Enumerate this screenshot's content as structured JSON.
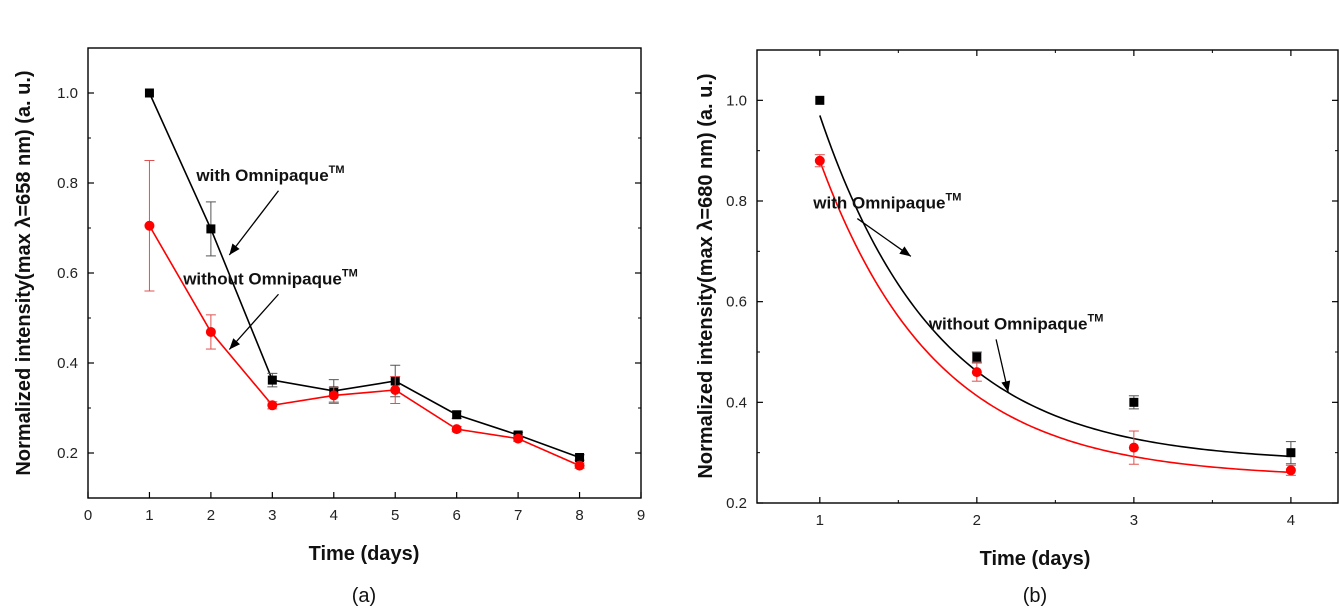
{
  "chart_data": [
    {
      "panel_label": "(a)",
      "type": "line",
      "xlabel": "Time (days)",
      "ylabel": "Normalized intensity(max λ=658 nm) (a. u.)",
      "xlim": [
        0,
        9
      ],
      "ylim": [
        0.1,
        1.1
      ],
      "xticks": [
        0,
        1,
        2,
        3,
        4,
        5,
        6,
        7,
        8,
        9
      ],
      "yticks": [
        0.2,
        0.4,
        0.6,
        0.8,
        1.0
      ],
      "ytick_labels": [
        "0.2",
        "0.4",
        "0.6",
        "0.8",
        "1.0"
      ],
      "grid": false,
      "series": [
        {
          "name": "with Omnipaque™",
          "color": "#000000",
          "marker": "square",
          "x": [
            1,
            2,
            3,
            4,
            5,
            6,
            7,
            8
          ],
          "y": [
            1.0,
            0.698,
            0.362,
            0.338,
            0.36,
            0.285,
            0.24,
            0.19
          ],
          "err": [
            0,
            0.06,
            0.015,
            0.025,
            0.035,
            0.008,
            0.006,
            0.006
          ]
        },
        {
          "name": "without Omnipaque™",
          "color": "#ff0000",
          "marker": "circle",
          "x": [
            1,
            2,
            3,
            4,
            5,
            6,
            7,
            8
          ],
          "y": [
            0.705,
            0.469,
            0.306,
            0.328,
            0.34,
            0.253,
            0.232,
            0.172
          ],
          "err": [
            0.145,
            0.038,
            0.008,
            0.018,
            0.03,
            0.006,
            0.006,
            0.006
          ]
        }
      ],
      "annotations": [
        {
          "text": "with Omnipaque",
          "sup": "TM",
          "x": 2.97,
          "y": 0.805,
          "arrow_to": [
            2.3,
            0.64
          ]
        },
        {
          "text": "without Omnipaque",
          "sup": "TM",
          "x": 2.97,
          "y": 0.575,
          "arrow_to": [
            2.3,
            0.43
          ]
        }
      ]
    },
    {
      "panel_label": "(b)",
      "type": "scatter",
      "xlabel": "Time (days)",
      "ylabel": "Normalized intensity(max λ=680 nm) (a. u.)",
      "xlim": [
        0.6,
        4.3
      ],
      "ylim": [
        0.2,
        1.1
      ],
      "xticks": [
        1,
        2,
        3,
        4
      ],
      "yticks": [
        0.2,
        0.4,
        0.6,
        0.8,
        1.0
      ],
      "ytick_labels": [
        "0.2",
        "0.4",
        "0.6",
        "0.8",
        "1.0"
      ],
      "grid": false,
      "series": [
        {
          "name": "with Omnipaque™",
          "color": "#000000",
          "marker": "square",
          "x": [
            1,
            2,
            3,
            4
          ],
          "y": [
            1.0,
            0.49,
            0.4,
            0.3
          ],
          "err": [
            0,
            0.01,
            0.013,
            0.022
          ],
          "fit": {
            "model": "exponential decay",
            "y0": 0.28,
            "A": 0.69,
            "t0": 0.75,
            "x0": 1
          }
        },
        {
          "name": "without Omnipaque™",
          "color": "#ff0000",
          "marker": "circle",
          "x": [
            1,
            2,
            3,
            4
          ],
          "y": [
            0.88,
            0.46,
            0.31,
            0.265
          ],
          "err": [
            0.012,
            0.018,
            0.033,
            0.01
          ],
          "fit": {
            "model": "exponential decay",
            "y0": 0.25,
            "A": 0.63,
            "t0": 0.74,
            "x0": 1
          }
        }
      ],
      "annotations": [
        {
          "text": "with Omnipaque",
          "sup": "TM",
          "x": 1.43,
          "y": 0.785,
          "arrow_to": [
            1.58,
            0.69
          ]
        },
        {
          "text": "without Omnipaque",
          "sup": "TM",
          "x": 2.25,
          "y": 0.545,
          "arrow_to": [
            2.2,
            0.42
          ]
        }
      ]
    }
  ]
}
